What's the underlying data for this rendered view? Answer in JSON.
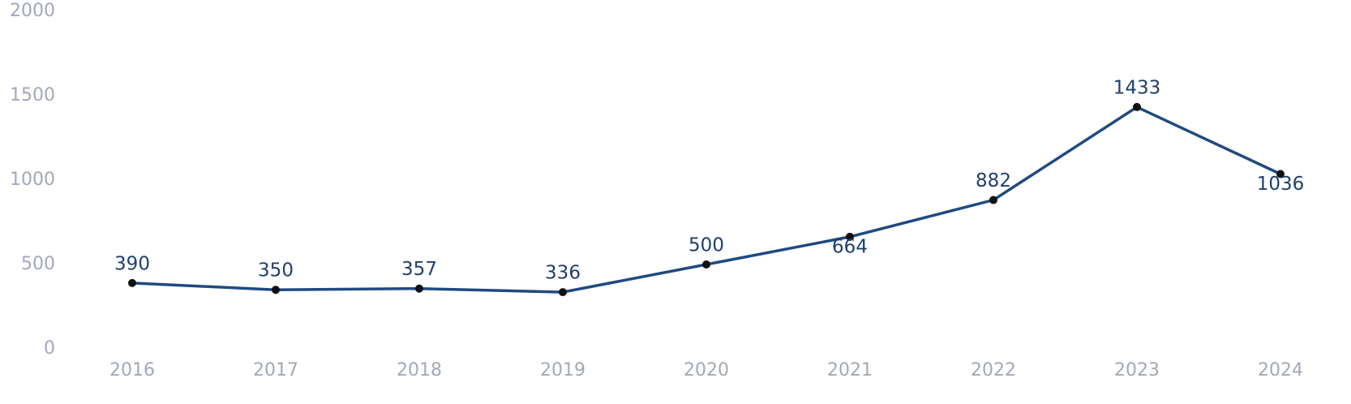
{
  "chart_data": {
    "type": "line",
    "categories": [
      "2016",
      "2017",
      "2018",
      "2019",
      "2020",
      "2021",
      "2022",
      "2023",
      "2024"
    ],
    "series": [
      {
        "color": "#1f4a82",
        "values": [
          390,
          350,
          357,
          336,
          500,
          664,
          882,
          1433,
          1036
        ]
      }
    ],
    "ylim": [
      0,
      2000
    ],
    "yticks": [
      0,
      500,
      1000,
      1500,
      2000
    ],
    "grid": false
  }
}
